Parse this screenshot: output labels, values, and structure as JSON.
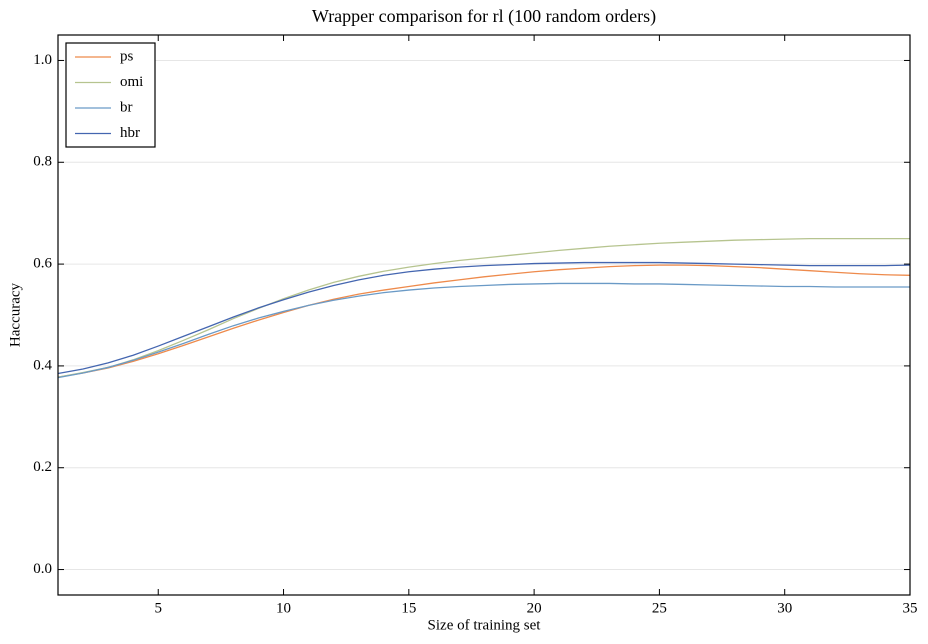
{
  "chart_data": {
    "type": "line",
    "title": "Wrapper comparison for rl (100 random orders)",
    "x_label": "Size of training set",
    "y_label": "Haccuracy",
    "x": [
      1,
      2,
      3,
      4,
      5,
      6,
      7,
      8,
      9,
      10,
      11,
      12,
      13,
      14,
      15,
      16,
      17,
      18,
      19,
      20,
      21,
      22,
      23,
      24,
      25,
      26,
      27,
      28,
      29,
      30,
      31,
      32,
      33,
      34,
      35
    ],
    "series": [
      {
        "name": "ps",
        "color": "#ee8a4b",
        "values": [
          0.378,
          0.386,
          0.396,
          0.409,
          0.424,
          0.44,
          0.457,
          0.474,
          0.49,
          0.505,
          0.519,
          0.531,
          0.541,
          0.549,
          0.556,
          0.563,
          0.569,
          0.575,
          0.58,
          0.585,
          0.589,
          0.592,
          0.595,
          0.597,
          0.598,
          0.598,
          0.597,
          0.595,
          0.593,
          0.59,
          0.587,
          0.584,
          0.581,
          0.579,
          0.578
        ]
      },
      {
        "name": "omi",
        "color": "#b6c48f",
        "values": [
          0.378,
          0.387,
          0.397,
          0.412,
          0.43,
          0.45,
          0.471,
          0.493,
          0.513,
          0.532,
          0.549,
          0.564,
          0.576,
          0.586,
          0.594,
          0.601,
          0.607,
          0.612,
          0.617,
          0.622,
          0.627,
          0.631,
          0.635,
          0.638,
          0.641,
          0.643,
          0.645,
          0.647,
          0.648,
          0.649,
          0.65,
          0.65,
          0.65,
          0.65,
          0.65
        ]
      },
      {
        "name": "br",
        "color": "#6a9ac6",
        "values": [
          0.377,
          0.386,
          0.397,
          0.411,
          0.427,
          0.444,
          0.462,
          0.479,
          0.494,
          0.507,
          0.519,
          0.529,
          0.537,
          0.544,
          0.549,
          0.553,
          0.556,
          0.558,
          0.56,
          0.561,
          0.562,
          0.562,
          0.562,
          0.561,
          0.561,
          0.56,
          0.559,
          0.558,
          0.557,
          0.556,
          0.556,
          0.555,
          0.555,
          0.555,
          0.555
        ]
      },
      {
        "name": "hbr",
        "color": "#4466b0",
        "values": [
          0.385,
          0.394,
          0.406,
          0.421,
          0.439,
          0.458,
          0.477,
          0.496,
          0.514,
          0.53,
          0.545,
          0.558,
          0.569,
          0.578,
          0.585,
          0.59,
          0.594,
          0.597,
          0.599,
          0.601,
          0.602,
          0.603,
          0.603,
          0.603,
          0.603,
          0.602,
          0.601,
          0.6,
          0.599,
          0.598,
          0.597,
          0.597,
          0.597,
          0.597,
          0.598
        ]
      }
    ],
    "xlim": [
      1,
      35
    ],
    "xticks": [
      5,
      10,
      15,
      20,
      25,
      30,
      35
    ],
    "ylim": [
      -0.05,
      1.05
    ],
    "yticks": [
      {
        "value": 0,
        "label": "0.0"
      },
      {
        "value": 0.2,
        "label": "0.2"
      },
      {
        "value": 0.4,
        "label": "0.4"
      },
      {
        "value": 0.6,
        "label": "0.6"
      },
      {
        "value": 0.8,
        "label": "0.8"
      },
      {
        "value": 1,
        "label": "1.0"
      }
    ],
    "grid": true,
    "legend": "upper left"
  }
}
